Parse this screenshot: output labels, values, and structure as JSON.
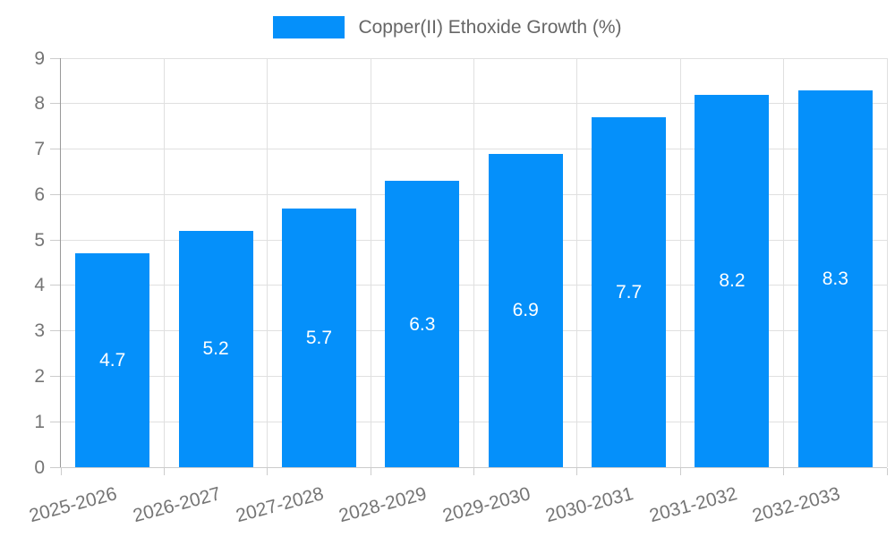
{
  "legend": {
    "label": "Copper(II) Ethoxide Growth (%)"
  },
  "chart_data": {
    "type": "bar",
    "title": "Copper(II) Ethoxide Growth (%)",
    "categories": [
      "2025-2026",
      "2026-2027",
      "2027-2028",
      "2028-2029",
      "2029-2030",
      "2030-2031",
      "2031-2032",
      "2032-2033"
    ],
    "values": [
      4.7,
      5.2,
      5.7,
      6.3,
      6.9,
      7.7,
      8.2,
      8.3
    ],
    "value_labels": [
      "4.7",
      "5.2",
      "5.7",
      "6.3",
      "6.9",
      "7.7",
      "8.2",
      "8.3"
    ],
    "series_name": "Copper(II) Ethoxide Growth (%)",
    "xlabel": "",
    "ylabel": "",
    "ylim": [
      0,
      9
    ],
    "yticks": [
      0,
      1,
      2,
      3,
      4,
      5,
      6,
      7,
      8,
      9
    ],
    "grid": true,
    "legend_position": "top",
    "x_label_rotation_deg": -15,
    "bar_value_label_position": "inside-center"
  },
  "colors": {
    "bar": "#0590FA",
    "grid": "#E0E0E0",
    "y_axis_line": "#999999",
    "x_axis_line": "#CCCCCC",
    "tick": "#CCCCCC",
    "axis_text": "#757575",
    "legend_text": "#666666",
    "value_label": "#FFFFFF",
    "background": "#FFFFFF"
  }
}
